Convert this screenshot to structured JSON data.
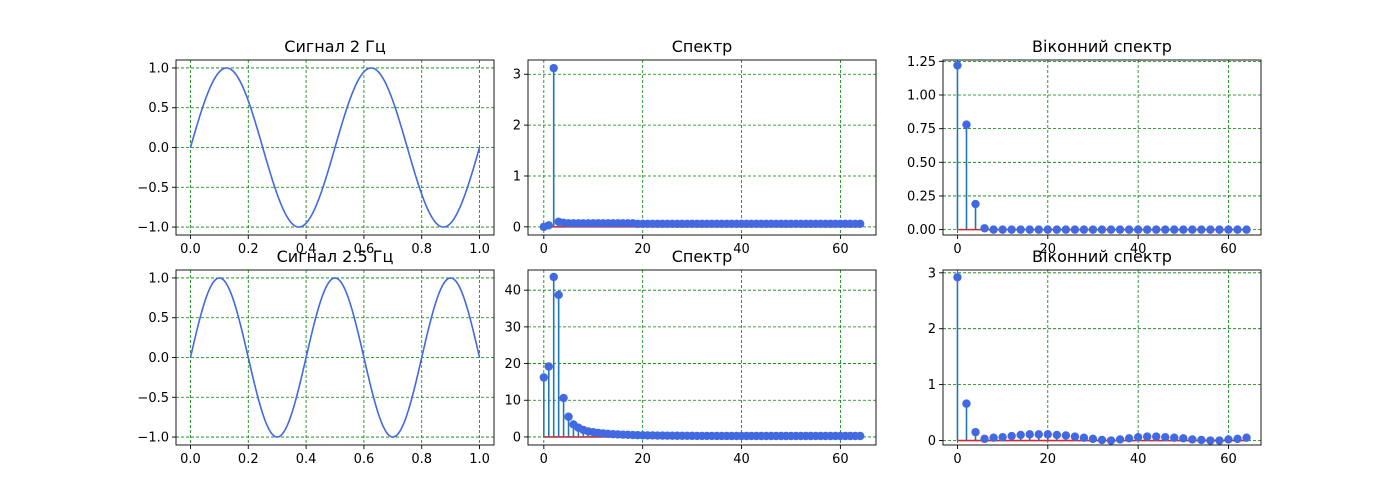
{
  "colors": {
    "line": "#4169e1",
    "stem": "#1f77b4",
    "marker": "#4169e1",
    "baseline": "#d62728",
    "grid": "#008000"
  },
  "chart_data": [
    {
      "type": "line",
      "title": "Сигнал 2 Гц",
      "xlim": [
        -0.05,
        1.05
      ],
      "ylim": [
        -1.1,
        1.1
      ],
      "xticks": [
        0.0,
        0.2,
        0.4,
        0.6,
        0.8,
        1.0
      ],
      "xtick_labels": [
        "0.0",
        "0.2",
        "0.4",
        "0.6",
        "0.8",
        "1.0"
      ],
      "yticks": [
        -1.0,
        -0.5,
        0.0,
        0.5,
        1.0
      ],
      "ytick_labels": [
        "−1.0",
        "−0.5",
        "0.0",
        "0.5",
        "1.0"
      ],
      "grid": true,
      "frequency_hz": 2,
      "x": [
        0.0,
        0.02,
        0.04,
        0.06,
        0.08,
        0.1,
        0.12,
        0.14,
        0.16,
        0.18,
        0.2,
        0.22,
        0.24,
        0.26,
        0.28,
        0.3,
        0.32,
        0.34,
        0.36,
        0.38,
        0.4,
        0.42,
        0.44,
        0.46,
        0.48,
        0.5,
        0.52,
        0.54,
        0.56,
        0.58,
        0.6,
        0.62,
        0.64,
        0.66,
        0.68,
        0.7,
        0.72,
        0.74,
        0.76,
        0.78,
        0.8,
        0.82,
        0.84,
        0.86,
        0.88,
        0.9,
        0.92,
        0.94,
        0.96,
        0.98,
        1.0
      ],
      "y": [
        0.0,
        0.249,
        0.482,
        0.685,
        0.844,
        0.951,
        0.998,
        0.982,
        0.905,
        0.771,
        0.588,
        0.368,
        0.125,
        -0.125,
        -0.368,
        -0.588,
        -0.771,
        -0.905,
        -0.982,
        -0.998,
        -0.951,
        -0.844,
        -0.685,
        -0.482,
        -0.249,
        0.0,
        0.249,
        0.482,
        0.685,
        0.844,
        0.951,
        0.998,
        0.982,
        0.905,
        0.771,
        0.588,
        0.368,
        0.125,
        -0.125,
        -0.368,
        -0.588,
        -0.771,
        -0.905,
        -0.982,
        -0.998,
        -0.951,
        -0.844,
        -0.685,
        -0.482,
        -0.249,
        0.0
      ]
    },
    {
      "type": "stem",
      "title": "Спектр",
      "xlim": [
        -3.2,
        67.2
      ],
      "ylim": [
        -0.16,
        3.28
      ],
      "xticks": [
        0,
        20,
        40,
        60
      ],
      "xtick_labels": [
        "0",
        "20",
        "40",
        "60"
      ],
      "yticks": [
        0,
        1,
        2,
        3
      ],
      "ytick_labels": [
        "0",
        "1",
        "2",
        "3"
      ],
      "grid": true,
      "x": [
        0,
        1,
        2,
        3,
        4,
        5,
        6,
        7,
        8,
        9,
        10,
        11,
        12,
        13,
        14,
        15,
        16,
        17,
        18,
        19,
        20,
        21,
        22,
        23,
        24,
        25,
        26,
        27,
        28,
        29,
        30,
        31,
        32,
        33,
        34,
        35,
        36,
        37,
        38,
        39,
        40,
        41,
        42,
        43,
        44,
        45,
        46,
        47,
        48,
        49,
        50,
        51,
        52,
        53,
        54,
        55,
        56,
        57,
        58,
        59,
        60,
        61,
        62,
        63,
        64
      ],
      "y": [
        0.0,
        0.03,
        3.12,
        0.1,
        0.08,
        0.07,
        0.07,
        0.07,
        0.07,
        0.07,
        0.07,
        0.07,
        0.07,
        0.07,
        0.07,
        0.07,
        0.07,
        0.07,
        0.07,
        0.06,
        0.06,
        0.06,
        0.06,
        0.06,
        0.06,
        0.06,
        0.06,
        0.06,
        0.06,
        0.06,
        0.06,
        0.06,
        0.06,
        0.06,
        0.06,
        0.06,
        0.06,
        0.06,
        0.06,
        0.06,
        0.06,
        0.06,
        0.06,
        0.06,
        0.06,
        0.06,
        0.06,
        0.06,
        0.06,
        0.06,
        0.06,
        0.06,
        0.06,
        0.06,
        0.06,
        0.06,
        0.06,
        0.06,
        0.06,
        0.06,
        0.06,
        0.06,
        0.06,
        0.06,
        0.06
      ]
    },
    {
      "type": "stem",
      "title": "Віконний спектр",
      "xlim": [
        -3.2,
        67.2
      ],
      "ylim": [
        -0.04,
        1.26
      ],
      "xticks": [
        0,
        20,
        40,
        60
      ],
      "xtick_labels": [
        "0",
        "20",
        "40",
        "60"
      ],
      "yticks": [
        0.0,
        0.25,
        0.5,
        0.75,
        1.0,
        1.25
      ],
      "ytick_labels": [
        "0.00",
        "0.25",
        "0.50",
        "0.75",
        "1.00",
        "1.25"
      ],
      "grid": true,
      "x": [
        0,
        2,
        4,
        6,
        8,
        10,
        12,
        14,
        16,
        18,
        20,
        22,
        24,
        26,
        28,
        30,
        32,
        34,
        36,
        38,
        40,
        42,
        44,
        46,
        48,
        50,
        52,
        54,
        56,
        58,
        60,
        62,
        64
      ],
      "y": [
        1.22,
        0.78,
        0.19,
        0.01,
        0.0,
        0.0,
        0.0,
        0.0,
        0.0,
        0.0,
        0.0,
        0.0,
        0.0,
        0.0,
        0.0,
        0.0,
        0.0,
        0.0,
        0.0,
        0.0,
        0.0,
        0.0,
        0.0,
        0.0,
        0.0,
        0.0,
        0.0,
        0.0,
        0.0,
        0.0,
        0.0,
        0.0,
        0.0
      ]
    },
    {
      "type": "line",
      "title": "Сигнал 2.5 Гц",
      "xlim": [
        -0.05,
        1.05
      ],
      "ylim": [
        -1.1,
        1.1
      ],
      "xticks": [
        0.0,
        0.2,
        0.4,
        0.6,
        0.8,
        1.0
      ],
      "xtick_labels": [
        "0.0",
        "0.2",
        "0.4",
        "0.6",
        "0.8",
        "1.0"
      ],
      "yticks": [
        -1.0,
        -0.5,
        0.0,
        0.5,
        1.0
      ],
      "ytick_labels": [
        "−1.0",
        "−0.5",
        "0.0",
        "0.5",
        "1.0"
      ],
      "grid": true,
      "frequency_hz": 2.5,
      "x": [
        0.0,
        0.02,
        0.04,
        0.06,
        0.08,
        0.1,
        0.12,
        0.14,
        0.16,
        0.18,
        0.2,
        0.22,
        0.24,
        0.26,
        0.28,
        0.3,
        0.32,
        0.34,
        0.36,
        0.38,
        0.4,
        0.42,
        0.44,
        0.46,
        0.48,
        0.5,
        0.52,
        0.54,
        0.56,
        0.58,
        0.6,
        0.62,
        0.64,
        0.66,
        0.68,
        0.7,
        0.72,
        0.74,
        0.76,
        0.78,
        0.8,
        0.82,
        0.84,
        0.86,
        0.88,
        0.9,
        0.92,
        0.94,
        0.96,
        0.98,
        1.0
      ],
      "y": [
        0.0,
        0.309,
        0.588,
        0.809,
        0.951,
        1.0,
        0.951,
        0.809,
        0.588,
        0.309,
        0.0,
        -0.309,
        -0.588,
        -0.809,
        -0.951,
        -1.0,
        -0.951,
        -0.809,
        -0.588,
        -0.309,
        0.0,
        0.309,
        0.588,
        0.809,
        0.951,
        1.0,
        0.951,
        0.809,
        0.588,
        0.309,
        0.0,
        -0.309,
        -0.588,
        -0.809,
        -0.951,
        -1.0,
        -0.951,
        -0.809,
        -0.588,
        -0.309,
        0.0,
        0.309,
        0.588,
        0.809,
        0.951,
        1.0,
        0.951,
        0.809,
        0.588,
        0.309,
        0.0
      ]
    },
    {
      "type": "stem",
      "title": "Спектр",
      "xlim": [
        -3.2,
        67.2
      ],
      "ylim": [
        -2.2,
        45.5
      ],
      "xticks": [
        0,
        20,
        40,
        60
      ],
      "xtick_labels": [
        "0",
        "20",
        "40",
        "60"
      ],
      "yticks": [
        0,
        10,
        20,
        30,
        40
      ],
      "ytick_labels": [
        "0",
        "10",
        "20",
        "30",
        "40"
      ],
      "grid": true,
      "x": [
        0,
        1,
        2,
        3,
        4,
        5,
        6,
        7,
        8,
        9,
        10,
        11,
        12,
        13,
        14,
        15,
        16,
        17,
        18,
        19,
        20,
        21,
        22,
        23,
        24,
        25,
        26,
        27,
        28,
        29,
        30,
        31,
        32,
        33,
        34,
        35,
        36,
        37,
        38,
        39,
        40,
        41,
        42,
        43,
        44,
        45,
        46,
        47,
        48,
        49,
        50,
        51,
        52,
        53,
        54,
        55,
        56,
        57,
        58,
        59,
        60,
        61,
        62,
        63,
        64
      ],
      "y": [
        16.2,
        19.2,
        43.6,
        38.7,
        10.6,
        5.5,
        3.4,
        2.5,
        1.9,
        1.5,
        1.3,
        1.1,
        0.95,
        0.85,
        0.76,
        0.68,
        0.62,
        0.57,
        0.52,
        0.48,
        0.45,
        0.42,
        0.4,
        0.38,
        0.36,
        0.34,
        0.33,
        0.32,
        0.31,
        0.3,
        0.29,
        0.28,
        0.28,
        0.27,
        0.27,
        0.26,
        0.26,
        0.26,
        0.25,
        0.25,
        0.25,
        0.25,
        0.25,
        0.25,
        0.25,
        0.25,
        0.25,
        0.25,
        0.25,
        0.25,
        0.25,
        0.25,
        0.25,
        0.25,
        0.25,
        0.25,
        0.25,
        0.25,
        0.25,
        0.25,
        0.25,
        0.25,
        0.25,
        0.25,
        0.25
      ]
    },
    {
      "type": "stem",
      "title": "Віконний спектр",
      "xlim": [
        -3.2,
        67.2
      ],
      "ylim": [
        -0.08,
        3.05
      ],
      "xticks": [
        0,
        20,
        40,
        60
      ],
      "xtick_labels": [
        "0",
        "20",
        "40",
        "60"
      ],
      "yticks": [
        0,
        1,
        2,
        3
      ],
      "ytick_labels": [
        "0",
        "1",
        "2",
        "3"
      ],
      "grid": true,
      "x": [
        0,
        2,
        4,
        6,
        8,
        10,
        12,
        14,
        16,
        18,
        20,
        22,
        24,
        26,
        28,
        30,
        32,
        34,
        36,
        38,
        40,
        42,
        44,
        46,
        48,
        50,
        52,
        54,
        56,
        58,
        60,
        62,
        64
      ],
      "y": [
        2.92,
        0.66,
        0.15,
        0.03,
        0.05,
        0.06,
        0.08,
        0.1,
        0.11,
        0.11,
        0.11,
        0.1,
        0.09,
        0.07,
        0.05,
        0.03,
        0.01,
        0.0,
        0.02,
        0.04,
        0.06,
        0.07,
        0.07,
        0.06,
        0.05,
        0.04,
        0.02,
        0.01,
        0.0,
        0.0,
        0.02,
        0.03,
        0.05
      ]
    }
  ]
}
